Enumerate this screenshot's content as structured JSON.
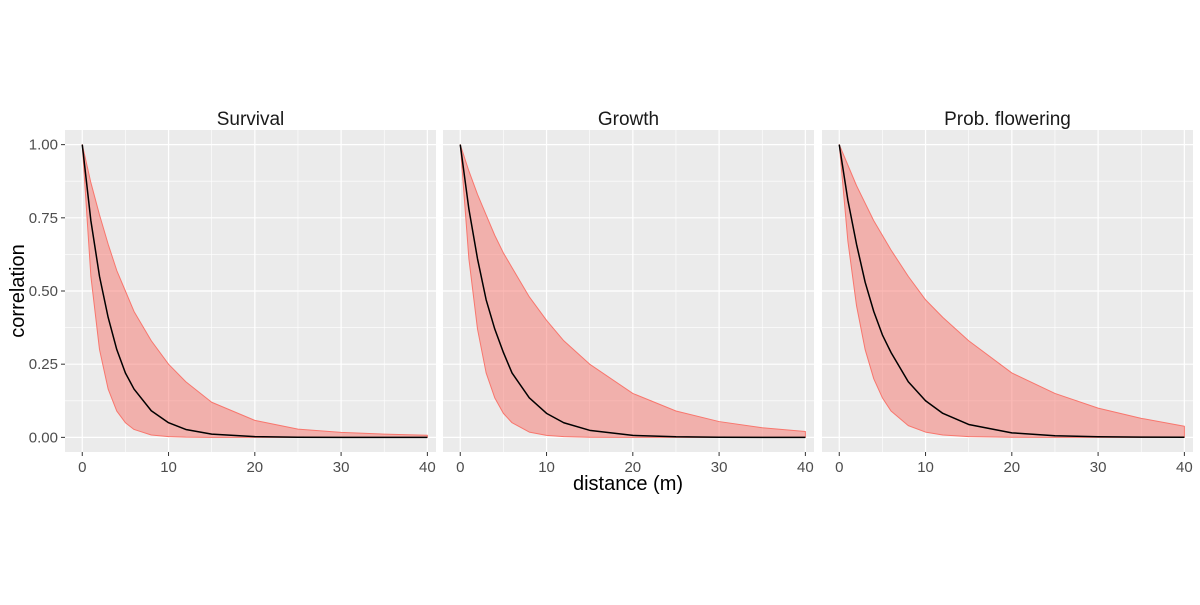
{
  "chart_data": {
    "type": "area",
    "xlabel": "distance (m)",
    "ylabel": "correlation",
    "xlim": [
      -2,
      41
    ],
    "ylim": [
      -0.05,
      1.05
    ],
    "x_ticks": [
      0,
      10,
      20,
      30,
      40
    ],
    "x_tick_labels": [
      "0",
      "10",
      "20",
      "30",
      "40"
    ],
    "y_ticks": [
      0,
      0.25,
      0.5,
      0.75,
      1.0
    ],
    "y_tick_labels": [
      "0.00",
      "0.25",
      "0.50",
      "0.75",
      "1.00"
    ],
    "grid": true,
    "legend": "none",
    "colors": {
      "panel_background": "#EBEBEB",
      "grid": "#FFFFFF",
      "ribbon_fill": "#F8766D",
      "ribbon_line": "#F8766D",
      "median_line": "#000000"
    },
    "x": [
      0,
      1,
      2,
      3,
      4,
      5,
      6,
      8,
      10,
      12,
      15,
      20,
      25,
      30,
      35,
      40
    ],
    "panels": [
      {
        "title": "Survival",
        "series": [
          {
            "role": "median",
            "values": [
              1.0,
              0.74,
              0.55,
              0.41,
              0.3,
              0.22,
              0.165,
              0.091,
              0.05,
              0.027,
              0.011,
              0.0025,
              0.0006,
              0.0001,
              0.0,
              0.0
            ]
          },
          {
            "role": "upper",
            "values": [
              1.0,
              0.87,
              0.76,
              0.66,
              0.57,
              0.5,
              0.43,
              0.33,
              0.25,
              0.19,
              0.12,
              0.058,
              0.028,
              0.017,
              0.011,
              0.007
            ]
          },
          {
            "role": "lower",
            "values": [
              1.0,
              0.55,
              0.3,
              0.165,
              0.09,
              0.05,
              0.027,
              0.008,
              0.0025,
              0.0007,
              0.0001,
              0.0,
              0.0,
              0.0,
              0.0,
              0.0
            ]
          }
        ]
      },
      {
        "title": "Growth",
        "series": [
          {
            "role": "median",
            "values": [
              1.0,
              0.78,
              0.61,
              0.47,
              0.37,
              0.29,
              0.22,
              0.135,
              0.082,
              0.05,
              0.024,
              0.0067,
              0.0019,
              0.0005,
              0.0001,
              0.0
            ]
          },
          {
            "role": "upper",
            "values": [
              1.0,
              0.91,
              0.83,
              0.76,
              0.69,
              0.63,
              0.58,
              0.48,
              0.4,
              0.33,
              0.25,
              0.15,
              0.09,
              0.054,
              0.033,
              0.02
            ]
          },
          {
            "role": "lower",
            "values": [
              1.0,
              0.61,
              0.37,
              0.22,
              0.135,
              0.082,
              0.05,
              0.018,
              0.0067,
              0.0025,
              0.0006,
              0.0,
              0.0,
              0.0,
              0.0,
              0.0
            ]
          }
        ]
      },
      {
        "title": "Prob. flowering",
        "series": [
          {
            "role": "median",
            "values": [
              1.0,
              0.81,
              0.66,
              0.53,
              0.43,
              0.35,
              0.29,
              0.19,
              0.125,
              0.082,
              0.044,
              0.0155,
              0.0055,
              0.002,
              0.0007,
              0.0002
            ]
          },
          {
            "role": "upper",
            "values": [
              1.0,
              0.93,
              0.86,
              0.8,
              0.74,
              0.69,
              0.64,
              0.55,
              0.47,
              0.41,
              0.33,
              0.22,
              0.15,
              0.1,
              0.065,
              0.038
            ]
          },
          {
            "role": "lower",
            "values": [
              1.0,
              0.67,
              0.45,
              0.3,
              0.2,
              0.135,
              0.09,
              0.04,
              0.018,
              0.008,
              0.0025,
              0.0003,
              0.0,
              0.0,
              0.0,
              0.0
            ]
          }
        ]
      }
    ]
  }
}
